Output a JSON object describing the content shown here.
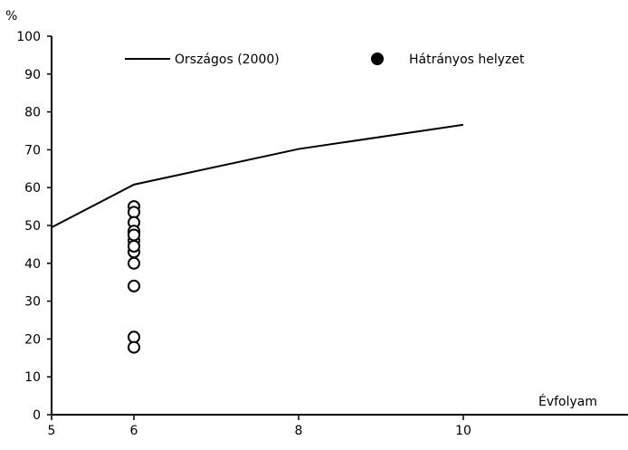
{
  "chart_data": {
    "type": "line",
    "ylabel": "%",
    "xlabel": "Évfolyam",
    "xlim": [
      5,
      12
    ],
    "ylim": [
      0,
      100
    ],
    "xticks": [
      5,
      6,
      8,
      10
    ],
    "yticks": [
      0,
      10,
      20,
      30,
      40,
      50,
      60,
      70,
      80,
      90,
      100
    ],
    "grid": false,
    "legend_position": "top",
    "series": [
      {
        "name": "Országos (2000)",
        "kind": "line",
        "color": "#000000",
        "x": [
          5,
          6,
          8,
          10
        ],
        "y": [
          49.5,
          60.8,
          70.2,
          76.6
        ]
      },
      {
        "name": "Hátrányos helyzet",
        "kind": "scatter",
        "marker": "filled-circle",
        "color": "#000000",
        "x": [
          6
        ],
        "y": [
          48
        ]
      },
      {
        "kind": "scatter",
        "marker": "open-circle",
        "color": "#000000",
        "x": [
          6,
          6,
          6,
          6,
          6,
          6,
          6,
          6,
          6,
          6,
          6,
          6
        ],
        "y": [
          55,
          53.5,
          50.8,
          48.5,
          46,
          43,
          40,
          34,
          20.5,
          17.8,
          47.5,
          44.5
        ]
      }
    ]
  }
}
